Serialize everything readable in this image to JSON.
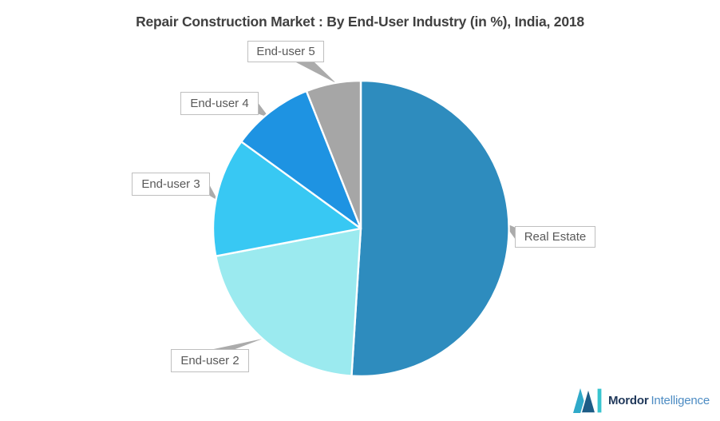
{
  "page": {
    "background": "#ffffff"
  },
  "chart_data": {
    "type": "pie",
    "title": "Repair Construction Market : By End-User Industry (in %), India, 2018",
    "unit": "%",
    "year": "2018",
    "region": "India",
    "labels": [
      "Real Estate",
      "End-user 2",
      "End-user 3",
      "End-user 4",
      "End-user 5"
    ],
    "values": [
      51,
      21,
      13,
      9,
      6
    ],
    "colors": [
      "#2E8CBE",
      "#9BEAEF",
      "#38C8F3",
      "#1E93E2",
      "#A6A6A6"
    ],
    "start_angle_deg": 0,
    "direction": "clockwise",
    "slice_gap_color": "#ffffff",
    "label_style": "callout boxes with gray leader pointers",
    "legend_position": "none"
  },
  "styles": {
    "title_color": "#404040",
    "callout_border": "#BFBFBF",
    "callout_text": "#595959",
    "leader_fill": "#ABABAB"
  },
  "logo": {
    "name": "Mordor Intelligence",
    "text_bold": "Mordor",
    "text_regular": "Intelligence",
    "mark_colors": {
      "left_peak": "#2FA9C9",
      "right_peak": "#1D5C86",
      "bar": "#38C4CF"
    },
    "text_colors": {
      "bold": "#21395B",
      "regular": "#4D8CC3"
    }
  }
}
